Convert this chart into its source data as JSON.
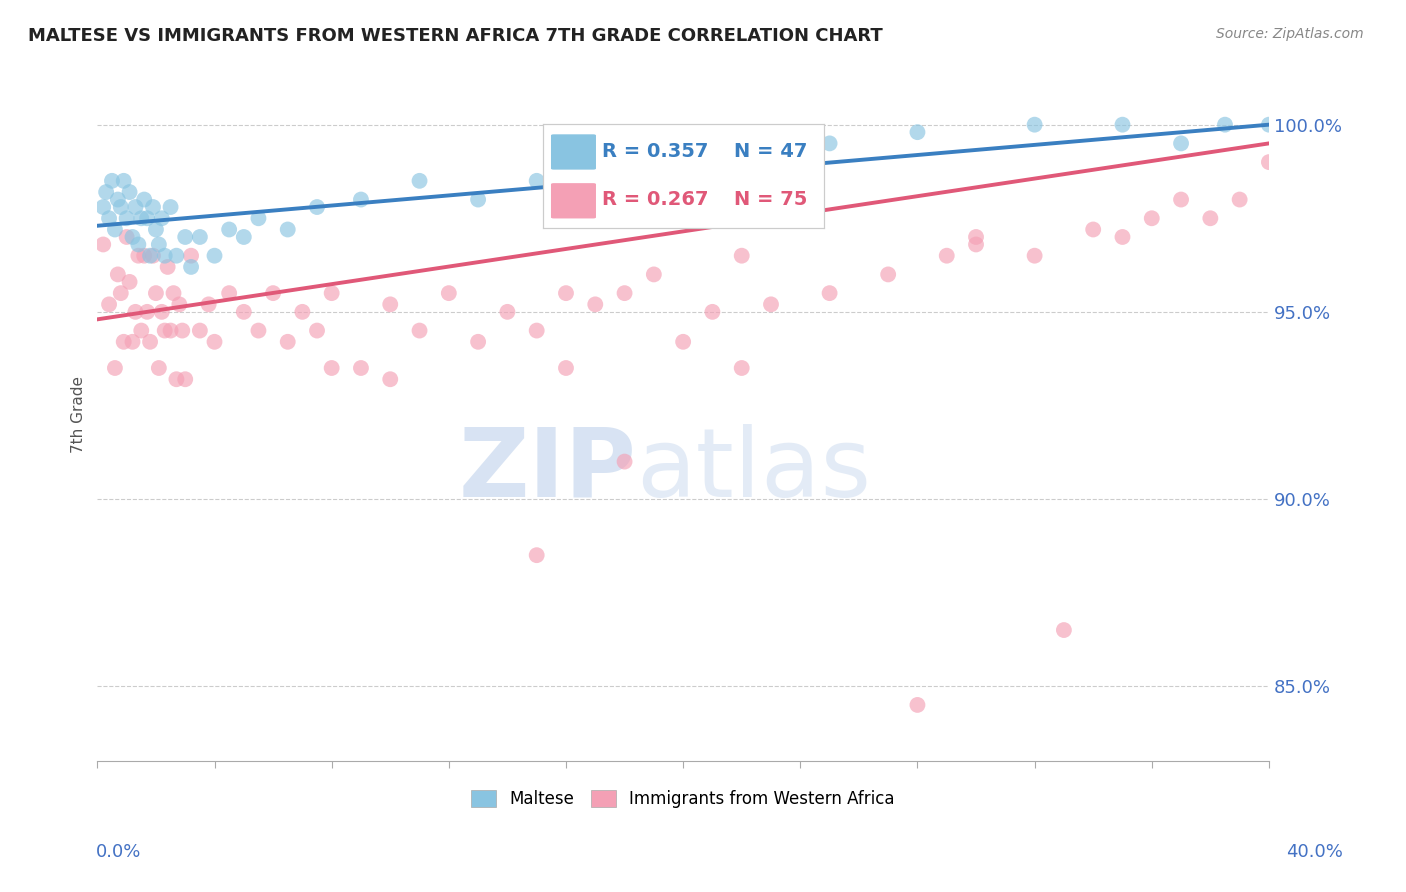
{
  "title": "MALTESE VS IMMIGRANTS FROM WESTERN AFRICA 7TH GRADE CORRELATION CHART",
  "source_text": "Source: ZipAtlas.com",
  "ylabel": "7th Grade",
  "xlim": [
    0.0,
    40.0
  ],
  "ylim": [
    83.0,
    101.5
  ],
  "yticks": [
    85.0,
    90.0,
    95.0,
    100.0
  ],
  "blue_color": "#89c4e1",
  "pink_color": "#f4a0b5",
  "blue_line_color": "#3a7fc1",
  "pink_line_color": "#e05878",
  "legend_R_blue": "R = 0.357",
  "legend_N_blue": "N = 47",
  "legend_R_pink": "R = 0.267",
  "legend_N_pink": "N = 75",
  "grid_color": "#cccccc",
  "title_color": "#222222",
  "axis_label_color": "#4472c4",
  "blue_scatter_x": [
    0.2,
    0.3,
    0.4,
    0.5,
    0.6,
    0.7,
    0.8,
    0.9,
    1.0,
    1.1,
    1.2,
    1.3,
    1.4,
    1.5,
    1.6,
    1.7,
    1.8,
    1.9,
    2.0,
    2.1,
    2.2,
    2.3,
    2.5,
    2.7,
    3.0,
    3.2,
    3.5,
    4.0,
    4.5,
    5.0,
    5.5,
    6.5,
    7.5,
    9.0,
    11.0,
    13.0,
    15.0,
    18.0,
    20.0,
    22.0,
    25.0,
    28.0,
    32.0,
    35.0,
    37.0,
    38.5,
    40.0
  ],
  "blue_scatter_y": [
    97.8,
    98.2,
    97.5,
    98.5,
    97.2,
    98.0,
    97.8,
    98.5,
    97.5,
    98.2,
    97.0,
    97.8,
    96.8,
    97.5,
    98.0,
    97.5,
    96.5,
    97.8,
    97.2,
    96.8,
    97.5,
    96.5,
    97.8,
    96.5,
    97.0,
    96.2,
    97.0,
    96.5,
    97.2,
    97.0,
    97.5,
    97.2,
    97.8,
    98.0,
    98.5,
    98.0,
    98.5,
    99.2,
    99.0,
    99.5,
    99.5,
    99.8,
    100.0,
    100.0,
    99.5,
    100.0,
    100.0
  ],
  "pink_scatter_x": [
    0.2,
    0.4,
    0.6,
    0.7,
    0.8,
    0.9,
    1.0,
    1.1,
    1.2,
    1.3,
    1.4,
    1.5,
    1.6,
    1.7,
    1.8,
    1.9,
    2.0,
    2.1,
    2.2,
    2.3,
    2.4,
    2.5,
    2.6,
    2.7,
    2.8,
    2.9,
    3.0,
    3.2,
    3.5,
    3.8,
    4.0,
    4.5,
    5.0,
    5.5,
    6.0,
    6.5,
    7.0,
    7.5,
    8.0,
    9.0,
    10.0,
    11.0,
    12.0,
    13.0,
    14.0,
    15.0,
    16.0,
    17.0,
    18.0,
    19.0,
    20.0,
    21.0,
    22.0,
    23.0,
    25.0,
    27.0,
    29.0,
    30.0,
    32.0,
    34.0,
    35.0,
    36.0,
    37.0,
    38.0,
    39.0,
    40.0,
    8.0,
    10.0,
    15.0,
    16.0,
    18.0,
    22.0,
    28.0,
    30.0,
    33.0
  ],
  "pink_scatter_y": [
    96.8,
    95.2,
    93.5,
    96.0,
    95.5,
    94.2,
    97.0,
    95.8,
    94.2,
    95.0,
    96.5,
    94.5,
    96.5,
    95.0,
    94.2,
    96.5,
    95.5,
    93.5,
    95.0,
    94.5,
    96.2,
    94.5,
    95.5,
    93.2,
    95.2,
    94.5,
    93.2,
    96.5,
    94.5,
    95.2,
    94.2,
    95.5,
    95.0,
    94.5,
    95.5,
    94.2,
    95.0,
    94.5,
    95.5,
    93.5,
    95.2,
    94.5,
    95.5,
    94.2,
    95.0,
    94.5,
    95.5,
    95.2,
    95.5,
    96.0,
    94.2,
    95.0,
    96.5,
    95.2,
    95.5,
    96.0,
    96.5,
    97.0,
    96.5,
    97.2,
    97.0,
    97.5,
    98.0,
    97.5,
    98.0,
    99.0,
    93.5,
    93.2,
    88.5,
    93.5,
    91.0,
    93.5,
    84.5,
    96.8,
    86.5
  ],
  "blue_line_x0": 0.0,
  "blue_line_y0": 97.3,
  "blue_line_x1": 40.0,
  "blue_line_y1": 100.0,
  "pink_line_x0": 0.0,
  "pink_line_y0": 94.8,
  "pink_line_x1": 40.0,
  "pink_line_y1": 99.5
}
